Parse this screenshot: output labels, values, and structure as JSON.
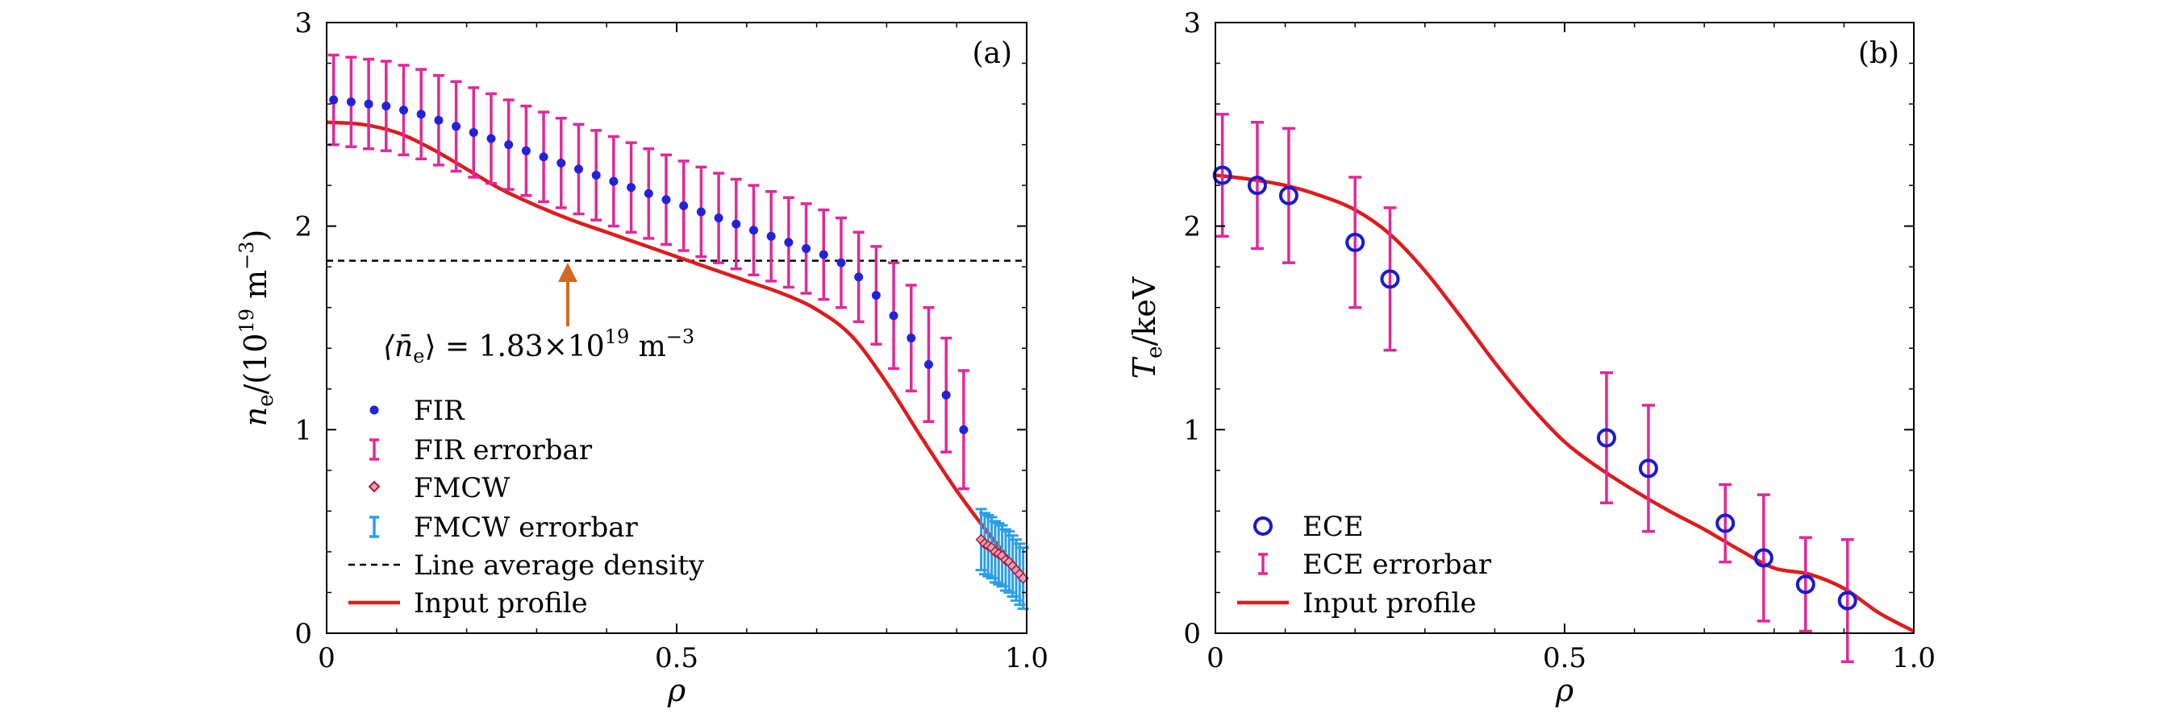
{
  "chart_data": [
    {
      "type": "scatter",
      "panel_label": "(a)",
      "xlabel": "ρ",
      "ylabel": "n_e/(10^19 m^-3)",
      "xlim": [
        0,
        1.0
      ],
      "ylim": [
        0,
        3
      ],
      "x_ticks": [
        "0",
        "0.5",
        "1.0"
      ],
      "y_ticks": [
        "0",
        "1",
        "2",
        "3"
      ],
      "grid": false,
      "legend_position": "bottom-left",
      "legend": [
        "FIR",
        "FIR errorbar",
        "FMCW",
        "FMCW errorbar",
        "Line average density",
        "Input profile"
      ],
      "annotation": "⟨n̄_e⟩ = 1.83×10^19 m^-3",
      "line_average": 1.83,
      "colors": {
        "fir": "#2222dd",
        "fir_err": "#e0289a",
        "fmcw": "#a31a3a",
        "fmcw_err": "#2a9fe8",
        "input": "#dd1c1c",
        "arrow": "#d2691e"
      },
      "series": [
        {
          "name": "FIR",
          "x": [
            0.01,
            0.035,
            0.06,
            0.085,
            0.11,
            0.135,
            0.16,
            0.185,
            0.21,
            0.235,
            0.26,
            0.285,
            0.31,
            0.335,
            0.36,
            0.385,
            0.41,
            0.435,
            0.46,
            0.485,
            0.51,
            0.535,
            0.56,
            0.585,
            0.61,
            0.635,
            0.66,
            0.685,
            0.71,
            0.735,
            0.76,
            0.785,
            0.81,
            0.835,
            0.86,
            0.885,
            0.91
          ],
          "y": [
            2.62,
            2.61,
            2.6,
            2.59,
            2.57,
            2.55,
            2.52,
            2.49,
            2.46,
            2.43,
            2.4,
            2.37,
            2.34,
            2.31,
            2.28,
            2.25,
            2.22,
            2.19,
            2.16,
            2.13,
            2.1,
            2.07,
            2.04,
            2.01,
            1.98,
            1.95,
            1.92,
            1.89,
            1.86,
            1.82,
            1.75,
            1.66,
            1.56,
            1.45,
            1.32,
            1.17,
            1.0
          ],
          "error": [
            0.22,
            0.22,
            0.22,
            0.22,
            0.22,
            0.22,
            0.22,
            0.22,
            0.22,
            0.22,
            0.22,
            0.22,
            0.22,
            0.22,
            0.22,
            0.22,
            0.22,
            0.22,
            0.22,
            0.22,
            0.22,
            0.22,
            0.22,
            0.22,
            0.22,
            0.22,
            0.22,
            0.22,
            0.22,
            0.22,
            0.22,
            0.24,
            0.26,
            0.26,
            0.28,
            0.28,
            0.29
          ]
        },
        {
          "name": "FMCW",
          "x": [
            0.935,
            0.94,
            0.945,
            0.95,
            0.955,
            0.96,
            0.965,
            0.97,
            0.975,
            0.98,
            0.985,
            0.99,
            0.995
          ],
          "y": [
            0.46,
            0.44,
            0.43,
            0.42,
            0.4,
            0.39,
            0.38,
            0.36,
            0.35,
            0.33,
            0.31,
            0.29,
            0.27
          ],
          "error": [
            0.15,
            0.15,
            0.15,
            0.15,
            0.15,
            0.15,
            0.15,
            0.15,
            0.15,
            0.15,
            0.15,
            0.15,
            0.15
          ]
        },
        {
          "name": "Input profile",
          "x": [
            0,
            0.05,
            0.1,
            0.15,
            0.2,
            0.25,
            0.3,
            0.35,
            0.4,
            0.45,
            0.5,
            0.55,
            0.6,
            0.65,
            0.7,
            0.75,
            0.8,
            0.85,
            0.9,
            0.95,
            1.0
          ],
          "y": [
            2.51,
            2.5,
            2.46,
            2.38,
            2.28,
            2.18,
            2.1,
            2.03,
            1.97,
            1.91,
            1.85,
            1.79,
            1.73,
            1.67,
            1.59,
            1.46,
            1.23,
            0.96,
            0.7,
            0.47,
            0.26
          ]
        }
      ]
    },
    {
      "type": "scatter",
      "panel_label": "(b)",
      "xlabel": "ρ",
      "ylabel": "T_e/keV",
      "xlim": [
        0,
        1.0
      ],
      "ylim": [
        0,
        3
      ],
      "x_ticks": [
        "0",
        "0.5",
        "1.0"
      ],
      "y_ticks": [
        "0",
        "1",
        "2",
        "3"
      ],
      "grid": false,
      "legend_position": "bottom-left",
      "legend": [
        "ECE",
        "ECE errorbar",
        "Input profile"
      ],
      "colors": {
        "ece": "#1a1acc",
        "ece_err": "#e0289a",
        "input": "#dd1c1c"
      },
      "series": [
        {
          "name": "ECE",
          "x": [
            0.01,
            0.06,
            0.105,
            0.2,
            0.25,
            0.56,
            0.62,
            0.73,
            0.785,
            0.845,
            0.905
          ],
          "y": [
            2.25,
            2.2,
            2.15,
            1.92,
            1.74,
            0.96,
            0.81,
            0.54,
            0.37,
            0.24,
            0.16
          ],
          "error": [
            0.3,
            0.31,
            0.33,
            0.32,
            0.35,
            0.32,
            0.31,
            0.19,
            0.31,
            0.23,
            0.3
          ]
        },
        {
          "name": "Input profile",
          "x": [
            0,
            0.05,
            0.1,
            0.15,
            0.2,
            0.25,
            0.3,
            0.35,
            0.4,
            0.45,
            0.5,
            0.55,
            0.6,
            0.65,
            0.7,
            0.75,
            0.8,
            0.85,
            0.9,
            0.95,
            1.0
          ],
          "y": [
            2.25,
            2.23,
            2.2,
            2.15,
            2.08,
            1.96,
            1.78,
            1.56,
            1.33,
            1.12,
            0.94,
            0.81,
            0.7,
            0.6,
            0.51,
            0.41,
            0.32,
            0.29,
            0.22,
            0.1,
            0.01
          ]
        }
      ]
    }
  ]
}
